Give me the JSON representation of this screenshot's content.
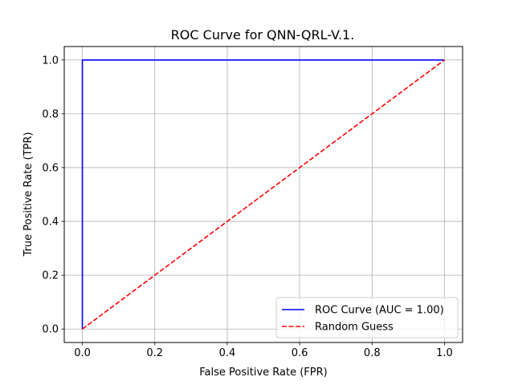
{
  "chart_data": {
    "type": "line",
    "title": "ROC Curve for QNN-QRL-V.1.",
    "xlabel": "False Positive Rate (FPR)",
    "ylabel": "True Positive Rate (TPR)",
    "xlim": [
      -0.05,
      1.05
    ],
    "ylim": [
      -0.05,
      1.05
    ],
    "xticks": [
      0.0,
      0.2,
      0.4,
      0.6,
      0.8,
      1.0
    ],
    "yticks": [
      0.0,
      0.2,
      0.4,
      0.6,
      0.8,
      1.0
    ],
    "xtick_labels": [
      "0.0",
      "0.2",
      "0.4",
      "0.6",
      "0.8",
      "1.0"
    ],
    "ytick_labels": [
      "0.0",
      "0.2",
      "0.4",
      "0.6",
      "0.8",
      "1.0"
    ],
    "grid": true,
    "legend_position": "lower-right",
    "series": [
      {
        "name": "ROC Curve (AUC = 1.00)",
        "color": "#0000ff",
        "style": "solid",
        "x": [
          0.0,
          0.0,
          1.0
        ],
        "y": [
          0.0,
          1.0,
          1.0
        ]
      },
      {
        "name": "Random Guess",
        "color": "#ff0000",
        "style": "dashed",
        "x": [
          0.0,
          1.0
        ],
        "y": [
          0.0,
          1.0
        ]
      }
    ]
  }
}
